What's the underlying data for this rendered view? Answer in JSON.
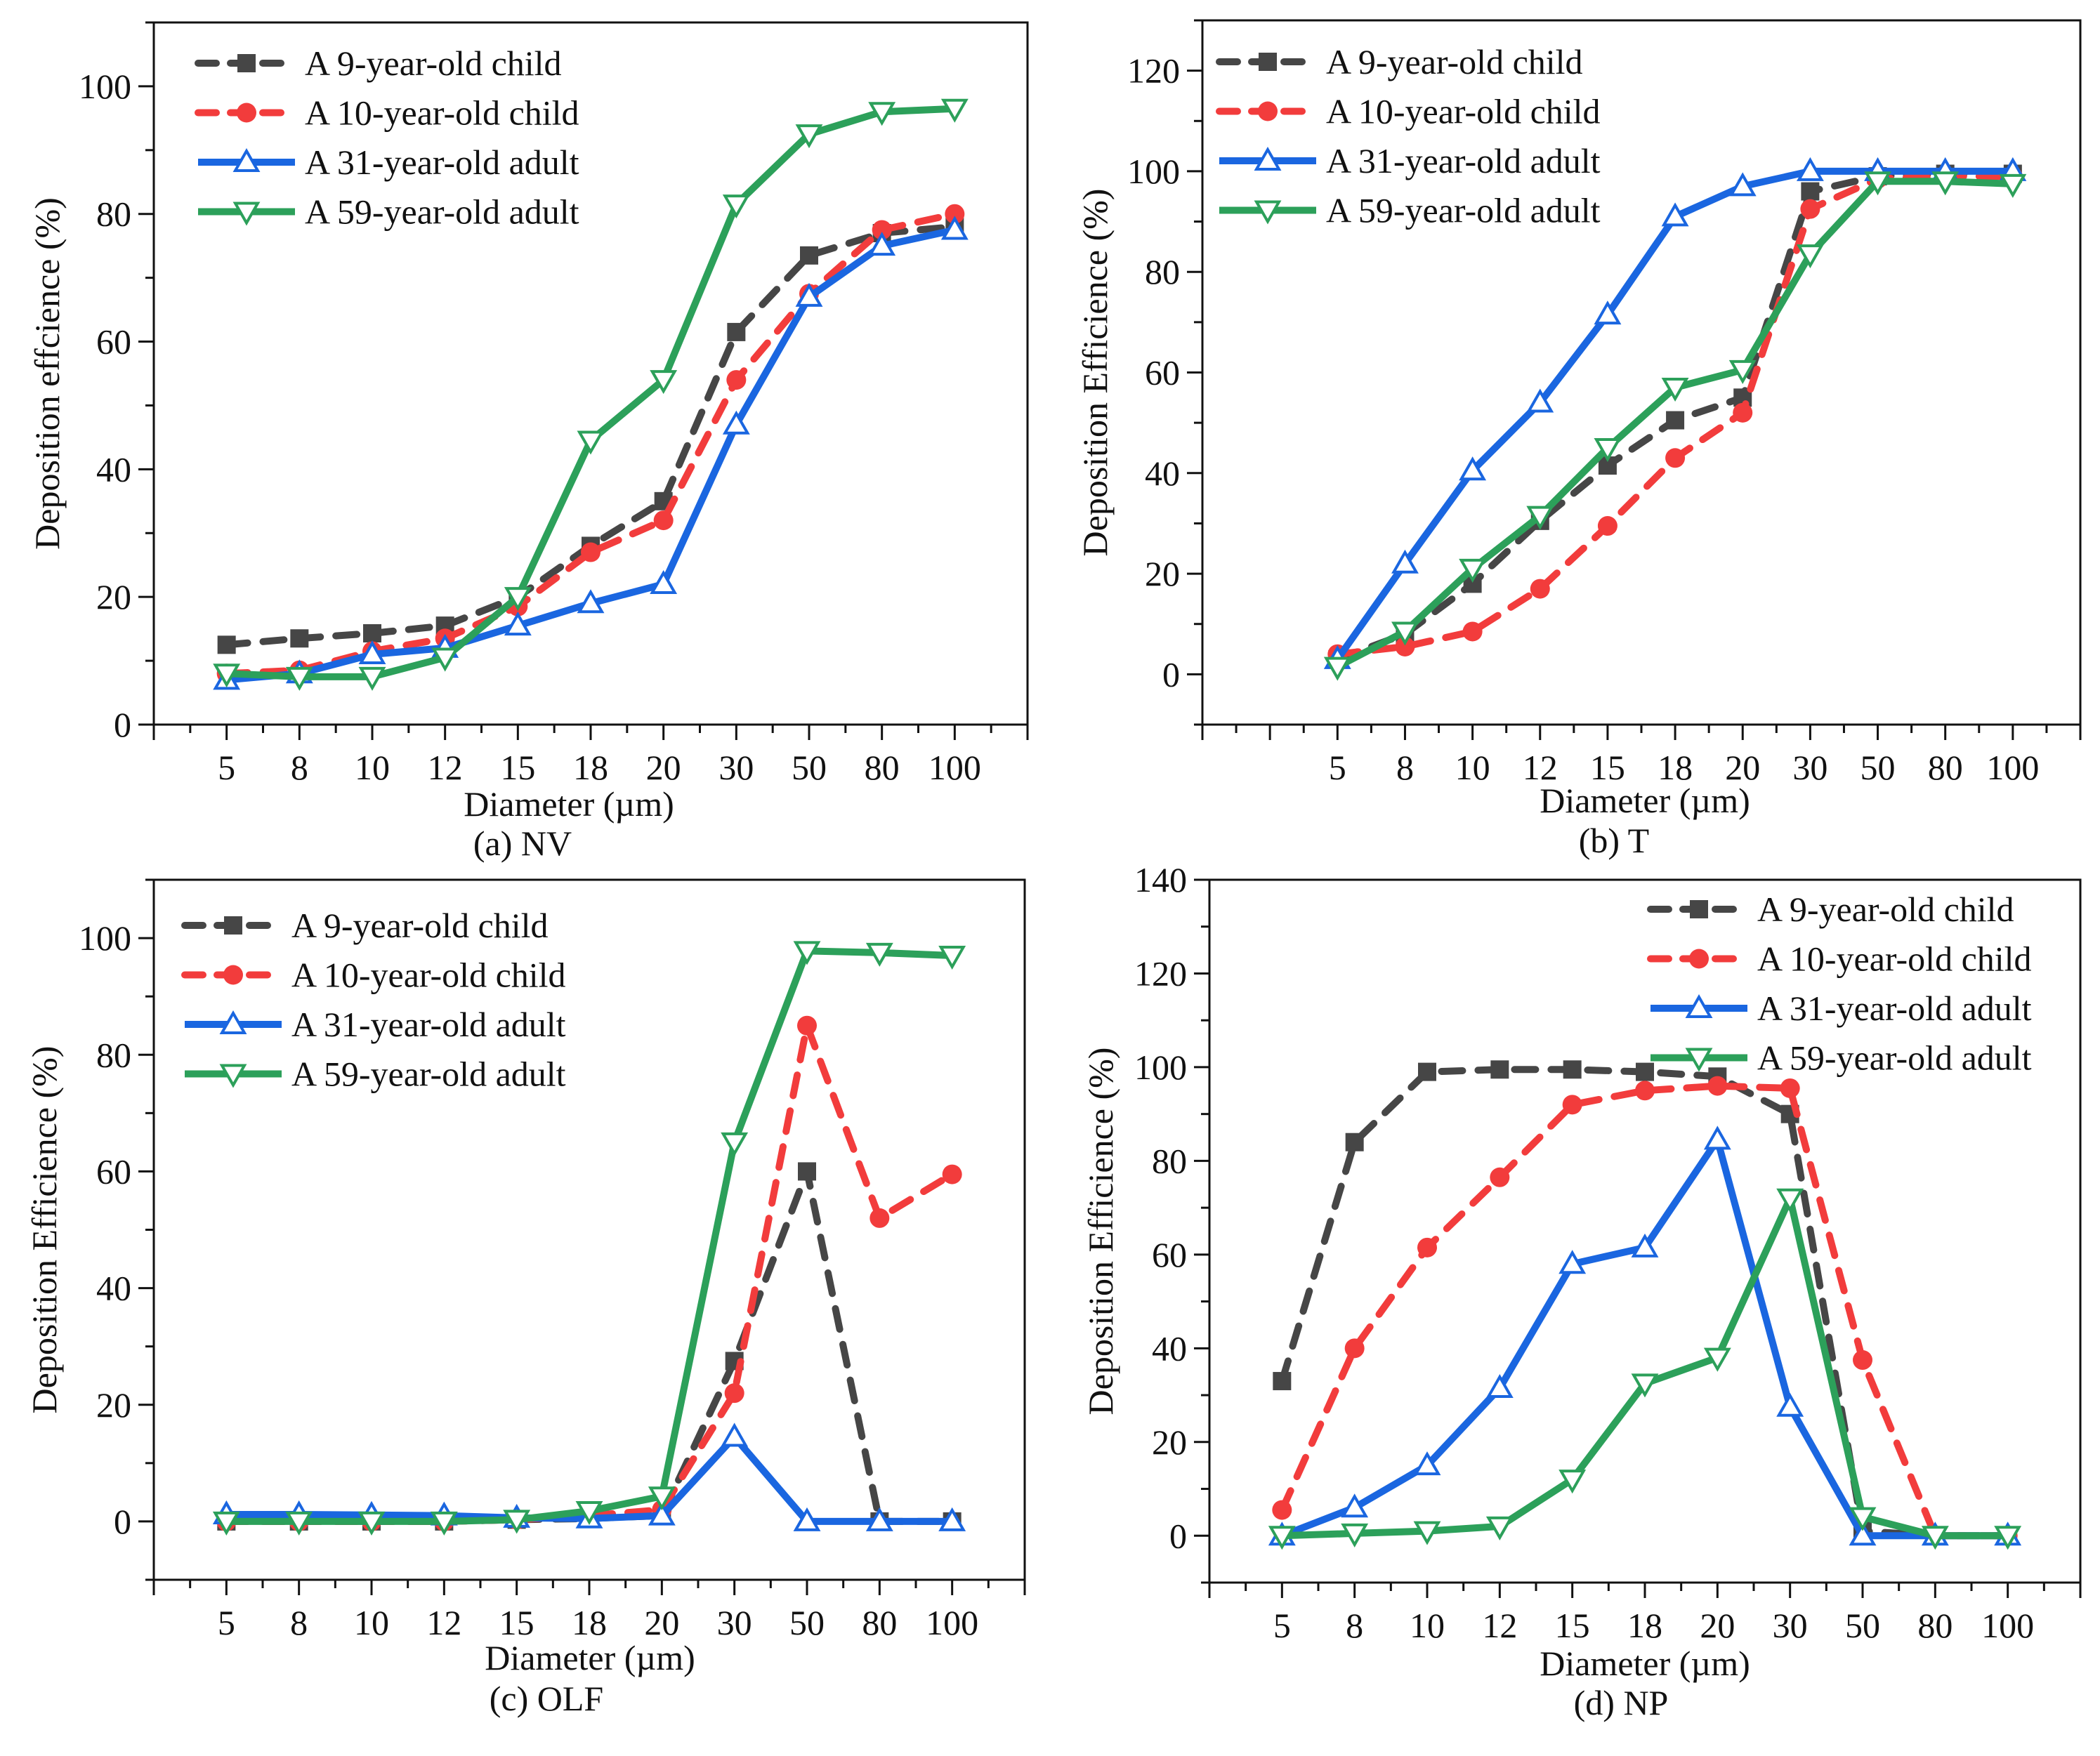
{
  "colors": {
    "child9": "#464646",
    "child10": "#f23c3c",
    "adult31": "#1a66e0",
    "adult59": "#2ca05a"
  },
  "chart_data": [
    {
      "type": "line",
      "panel": "a",
      "caption": "(a) NV",
      "xlabel": "Diameter (µm)",
      "ylabel": "Deposition effcience (%)",
      "categories": [
        "5",
        "8",
        "10",
        "12",
        "15",
        "18",
        "20",
        "30",
        "50",
        "80",
        "100"
      ],
      "ylim": [
        0,
        110
      ],
      "yticks": [
        0,
        20,
        40,
        60,
        80,
        100
      ],
      "legend_position": "top-left",
      "grid": false,
      "series": [
        {
          "name": "A 9-year-old child",
          "key": "child9",
          "style": "dashed",
          "marker": "square",
          "values": [
            12.5,
            13.5,
            14.3,
            15.5,
            20,
            28,
            35,
            61.5,
            73.5,
            77,
            78
          ]
        },
        {
          "name": "A 10-year-old child",
          "key": "child10",
          "style": "dashed",
          "marker": "circle",
          "values": [
            8,
            8.5,
            11.5,
            13.5,
            18.5,
            27,
            32,
            54,
            67.5,
            77.5,
            80
          ]
        },
        {
          "name": "A 31-year-old adult",
          "key": "adult31",
          "style": "solid",
          "marker": "triangle-up",
          "values": [
            7,
            8,
            11,
            12,
            15.5,
            19,
            22,
            47,
            67,
            75,
            77.5
          ]
        },
        {
          "name": "A 59-year-old adult",
          "key": "adult59",
          "style": "solid",
          "marker": "triangle-down",
          "values": [
            8,
            7.5,
            7.5,
            10.5,
            20,
            44.5,
            54,
            81.5,
            92.5,
            96,
            96.5
          ]
        }
      ]
    },
    {
      "type": "line",
      "panel": "b",
      "caption": "(b) T",
      "xlabel": "Diameter (µm)",
      "ylabel": "Deposition Efficience (%)",
      "categories": [
        "5",
        "8",
        "10",
        "12",
        "15",
        "18",
        "20",
        "30",
        "50",
        "80",
        "100"
      ],
      "ylim": [
        -10,
        130
      ],
      "yticks": [
        0,
        20,
        40,
        60,
        80,
        100,
        120
      ],
      "legend_position": "top-left",
      "grid": false,
      "series": [
        {
          "name": "A 9-year-old child",
          "key": "child9",
          "style": "dashed",
          "marker": "square",
          "values": [
            3,
            8,
            18,
            30.5,
            41.5,
            50.5,
            55,
            96,
            99,
            99.5,
            99.5
          ]
        },
        {
          "name": "A 10-year-old child",
          "key": "child10",
          "style": "dashed",
          "marker": "circle",
          "values": [
            4,
            5.5,
            8.5,
            17,
            29.5,
            43,
            52,
            92.5,
            98.5,
            99,
            99
          ]
        },
        {
          "name": "A 31-year-old adult",
          "key": "adult31",
          "style": "solid",
          "marker": "triangle-up",
          "values": [
            3,
            22,
            40.5,
            54,
            71.5,
            91,
            97,
            100,
            100,
            100,
            100
          ]
        },
        {
          "name": "A 59-year-old adult",
          "key": "adult59",
          "style": "solid",
          "marker": "triangle-down",
          "values": [
            1.5,
            8.5,
            21,
            31.5,
            45,
            57,
            60.5,
            83.5,
            98,
            98,
            97.5
          ]
        }
      ]
    },
    {
      "type": "line",
      "panel": "c",
      "caption": "(c) OLF",
      "xlabel": "Diameter (µm)",
      "ylabel": "Deposition Efficience (%)",
      "categories": [
        "5",
        "8",
        "10",
        "12",
        "15",
        "18",
        "20",
        "30",
        "50",
        "80",
        "100"
      ],
      "ylim": [
        -10,
        110
      ],
      "yticks": [
        0,
        20,
        40,
        60,
        80,
        100
      ],
      "legend_position": "top-left",
      "grid": false,
      "series": [
        {
          "name": "A 9-year-old child",
          "key": "child9",
          "style": "dashed",
          "marker": "square",
          "values": [
            0,
            0,
            0,
            0,
            0.3,
            0.5,
            1,
            27.5,
            60,
            0,
            0
          ]
        },
        {
          "name": "A 10-year-old child",
          "key": "child10",
          "style": "dashed",
          "marker": "circle",
          "values": [
            0,
            0,
            0,
            0,
            0.3,
            1,
            2,
            22,
            85,
            52,
            59.5
          ]
        },
        {
          "name": "A 31-year-old adult",
          "key": "adult31",
          "style": "solid",
          "marker": "triangle-up",
          "values": [
            1.2,
            1.2,
            1.1,
            1,
            0.6,
            0.5,
            1,
            14.5,
            0,
            0,
            0
          ]
        },
        {
          "name": "A 59-year-old adult",
          "key": "adult59",
          "style": "solid",
          "marker": "triangle-down",
          "values": [
            0,
            0,
            0,
            0,
            0.3,
            1.8,
            4.3,
            65,
            97.8,
            97.5,
            97
          ]
        }
      ]
    },
    {
      "type": "line",
      "panel": "d",
      "caption": "(d) NP",
      "xlabel": "Diameter (µm)",
      "ylabel": "Deposition Efficience (%)",
      "categories": [
        "5",
        "8",
        "10",
        "12",
        "15",
        "18",
        "20",
        "30",
        "50",
        "80",
        "100"
      ],
      "ylim": [
        -10,
        140
      ],
      "yticks": [
        0,
        20,
        40,
        60,
        80,
        100,
        120,
        140
      ],
      "legend_position": "top-right",
      "grid": false,
      "series": [
        {
          "name": "A 9-year-old child",
          "key": "child9",
          "style": "dashed",
          "marker": "square",
          "values": [
            33,
            84,
            99,
            99.5,
            99.5,
            99,
            98,
            90,
            1,
            0,
            0
          ]
        },
        {
          "name": "A 10-year-old child",
          "key": "child10",
          "style": "dashed",
          "marker": "circle",
          "values": [
            5.5,
            40,
            61.5,
            76.5,
            92,
            95,
            96,
            95.5,
            37.5,
            0,
            0
          ]
        },
        {
          "name": "A 31-year-old adult",
          "key": "adult31",
          "style": "solid",
          "marker": "triangle-up",
          "values": [
            0,
            6,
            15,
            31.5,
            58,
            61.5,
            84.5,
            27.5,
            0,
            0,
            0
          ]
        },
        {
          "name": "A 59-year-old adult",
          "key": "adult59",
          "style": "solid",
          "marker": "triangle-down",
          "values": [
            0,
            0.5,
            1,
            2,
            12,
            32.5,
            38,
            72,
            4,
            0,
            0
          ]
        }
      ]
    }
  ]
}
